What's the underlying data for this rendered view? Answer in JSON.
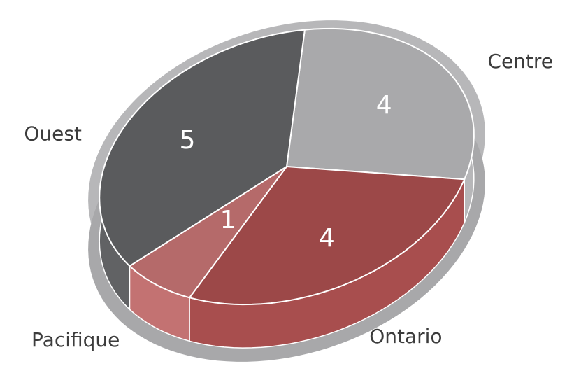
{
  "chart_data": {
    "type": "pie",
    "title": "",
    "categories": [
      "Centre",
      "Ontario",
      "Pacifique",
      "Ouest"
    ],
    "values": [
      4,
      4,
      1,
      5
    ],
    "colors": {
      "Centre": "#a9a9ab",
      "Ontario": "#9c4848",
      "Pacifique": "#b56a6a",
      "Ouest": "#5a5b5d",
      "rim": "#b7b7b9"
    },
    "legend": "none",
    "style": "3d-tilted"
  }
}
